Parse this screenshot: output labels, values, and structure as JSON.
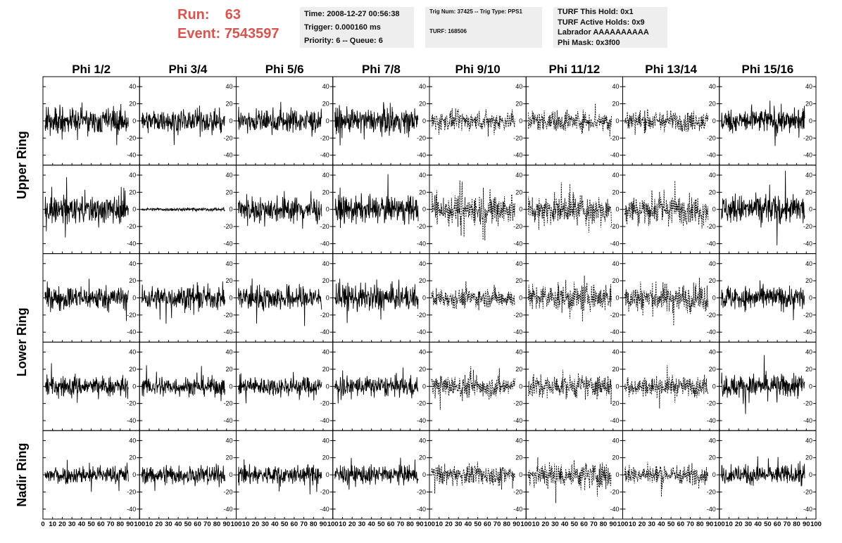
{
  "header": {
    "run_label": "Run:",
    "run_value": "63",
    "event_label": "Event:",
    "event_value": "7543597"
  },
  "info_time": {
    "line1": "Time: 2008-12-27 00:56:38",
    "line2": "Trigger: 0.000160 ms",
    "line3": "Priority: 6 -- Queue: 6"
  },
  "info_trig": {
    "line1": "Trig Num: 37425 -- Trig Type: PPS1",
    "line2": "TURF: 168506"
  },
  "info_turf": {
    "line1": "TURF This Hold: 0x1",
    "line2": "TURF Active Holds: 0x9",
    "line3": "Labrador AAAAAAAAAA",
    "line4": "Phi Mask: 0x3f00"
  },
  "colors": {
    "header_red": "#d9534f",
    "info_bg": "#eeeeee",
    "trace": "#000000"
  },
  "chart_data": {
    "type": "line",
    "columns": [
      "Phi 1/2",
      "Phi 3/4",
      "Phi 5/6",
      "Phi 7/8",
      "Phi 9/10",
      "Phi 11/12",
      "Phi 13/14",
      "Phi 15/16"
    ],
    "rows": [
      "Upper Ring",
      "Upper Ring",
      "Lower Ring",
      "Lower Ring",
      "Nadir Ring"
    ],
    "row_labels": [
      "Upper Ring",
      "Lower Ring",
      "Nadir Ring"
    ],
    "ylim": [
      -50,
      50
    ],
    "y_ticks": [
      -40,
      -20,
      0,
      20,
      40
    ],
    "xlim": [
      0,
      100
    ],
    "x_ticks": [
      0,
      10,
      20,
      30,
      40,
      50,
      60,
      70,
      80,
      90,
      100
    ],
    "dashed_columns": [
      4,
      5,
      6
    ],
    "panel_amplitude": [
      [
        16,
        14,
        15,
        15,
        12,
        13,
        13,
        15
      ],
      [
        18,
        2,
        16,
        16,
        20,
        18,
        18,
        18
      ],
      [
        15,
        15,
        16,
        16,
        12,
        17,
        18,
        15
      ],
      [
        13,
        12,
        12,
        13,
        14,
        14,
        12,
        15
      ],
      [
        11,
        12,
        12,
        12,
        13,
        17,
        12,
        12
      ]
    ],
    "grid": false,
    "legend": "none"
  }
}
